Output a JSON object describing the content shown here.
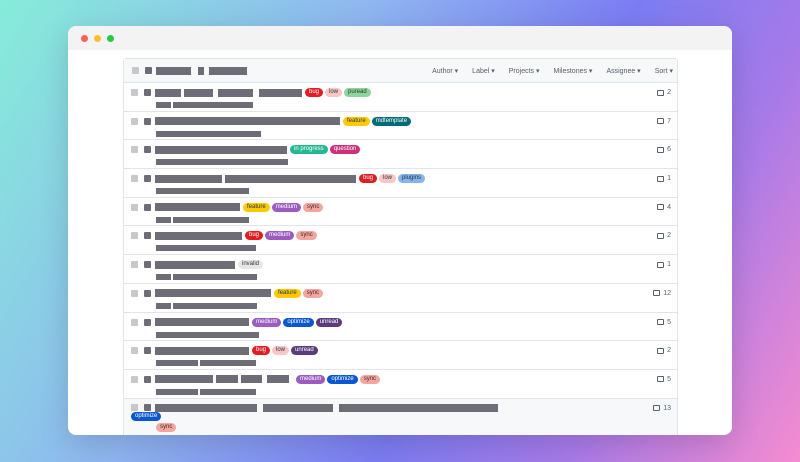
{
  "window": {
    "controls": [
      {
        "name": "close",
        "color": "#ff5f57"
      },
      {
        "name": "minimize",
        "color": "#febc2e"
      },
      {
        "name": "zoom",
        "color": "#28c840"
      }
    ]
  },
  "filters": [
    "Author ▾",
    "Label ▾",
    "Projects ▾",
    "Milestones ▾",
    "Assignee ▾",
    "Sort ▾"
  ],
  "label_colors": {
    "bug": [
      "#e11d21",
      "#fff"
    ],
    "low": [
      "#f8c6c6",
      "#333"
    ],
    "puread": [
      "#8fd49c",
      "#1b3d22"
    ],
    "feature": [
      "#fbca04",
      "#333"
    ],
    "mdtemplate": [
      "#006b75",
      "#fff"
    ],
    "in progress": [
      "#22b891",
      "#fff"
    ],
    "question": [
      "#cc317c",
      "#fff"
    ],
    "plugins": [
      "#84b6eb",
      "#1c2f4a"
    ],
    "medium": [
      "#9b5bbf",
      "#fff"
    ],
    "sync": [
      "#f2a6a0",
      "#4a1d1d"
    ],
    "invalid": [
      "#e6e6e6",
      "#333"
    ],
    "optimize": [
      "#0b57d0",
      "#fff"
    ],
    "unread": [
      "#5b3b7c",
      "#fff"
    ]
  },
  "issues": [
    {
      "labels": [
        "bug",
        "low",
        "puread"
      ],
      "comments": "2"
    },
    {
      "labels": [
        "feature",
        "mdtemplate"
      ],
      "comments": "7"
    },
    {
      "labels": [
        "in progress",
        "question"
      ],
      "comments": "6"
    },
    {
      "labels": [
        "bug",
        "low",
        "plugins"
      ],
      "comments": "1"
    },
    {
      "labels": [
        "feature",
        "medium",
        "sync"
      ],
      "comments": "4"
    },
    {
      "labels": [
        "bug",
        "medium",
        "sync"
      ],
      "comments": "2"
    },
    {
      "labels": [
        "invalid"
      ],
      "comments": "1"
    },
    {
      "labels": [
        "feature",
        "sync"
      ],
      "comments": "12"
    },
    {
      "labels": [
        "medium",
        "optimize",
        "unread"
      ],
      "comments": "5"
    },
    {
      "labels": [
        "bug",
        "low",
        "unread"
      ],
      "comments": "2"
    },
    {
      "labels": [
        "medium",
        "optimize",
        "sync"
      ],
      "comments": "5"
    },
    {
      "labels": [
        "optimize",
        "sync"
      ],
      "comments": "13"
    }
  ]
}
